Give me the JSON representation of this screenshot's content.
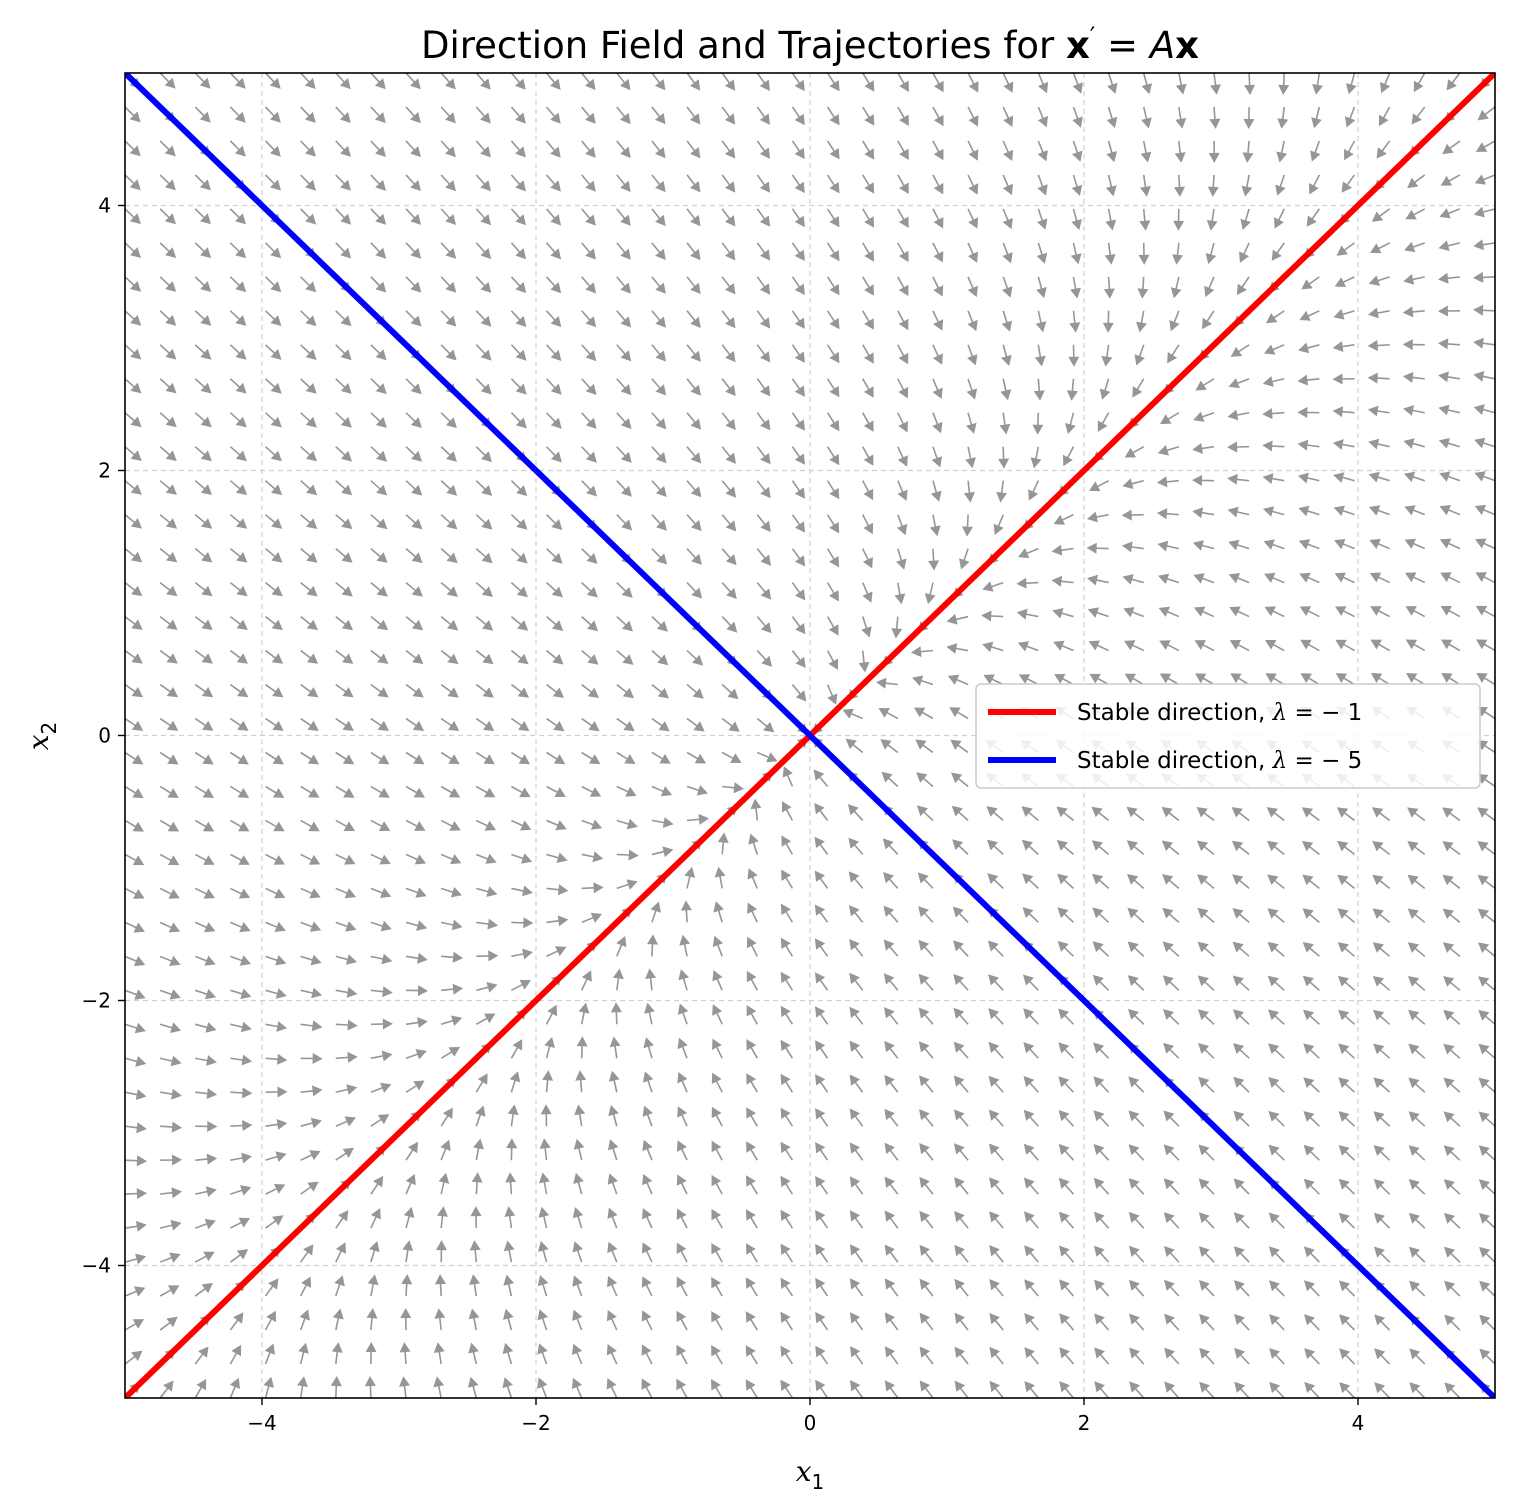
{
  "chart_data": {
    "type": "quiver",
    "title": {
      "prefix": "Direction Field and Trajectories for ",
      "bold_x": "x",
      "prime": "′",
      "equals": " = ",
      "matrix": "A",
      "bold_x2": "x"
    },
    "xlabel": {
      "base": "x",
      "sub": "1"
    },
    "ylabel": {
      "base": "x",
      "sub": "2"
    },
    "xlim": [
      -5,
      5
    ],
    "ylim": [
      -5,
      5
    ],
    "xticks": [
      -4,
      -2,
      0,
      2,
      4
    ],
    "yticks": [
      -4,
      -2,
      0,
      2,
      4
    ],
    "tick_labels": {
      "x": [
        "−4",
        "−2",
        "0",
        "2",
        "4"
      ],
      "y": [
        "−4",
        "−2",
        "0",
        "2",
        "4"
      ]
    },
    "grid": true,
    "matrix": [
      [
        -3,
        2
      ],
      [
        2,
        -3
      ]
    ],
    "field_grid": {
      "min": -5,
      "max": 5,
      "count": 40
    },
    "arrow_color": "#969696",
    "series": [
      {
        "name": "Stable direction, λ = −1",
        "color": "#ff0000",
        "x": [
          -5,
          5
        ],
        "y": [
          -5,
          5
        ]
      },
      {
        "name": "Stable direction, λ = −5",
        "color": "#0000ff",
        "x": [
          -5,
          5
        ],
        "y": [
          5,
          -5
        ]
      }
    ],
    "legend": {
      "placement": "center-right",
      "entries": [
        {
          "prefix": "Stable direction, ",
          "lambda": "λ",
          "rest": " = − 1"
        },
        {
          "prefix": "Stable direction, ",
          "lambda": "λ",
          "rest": " = − 5"
        }
      ]
    }
  }
}
